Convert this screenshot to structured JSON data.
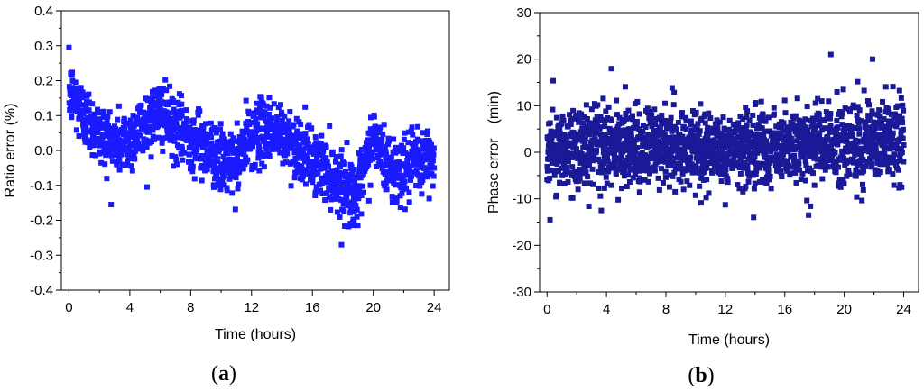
{
  "chart_data": [
    {
      "type": "scatter",
      "panel_label": {
        "open": "(",
        "letter": "a",
        "close": ")"
      },
      "xlabel": "Time (hours)",
      "ylabel": "Ratio error (%)",
      "xlim": [
        -0.5,
        25
      ],
      "ylim": [
        -0.4,
        0.4
      ],
      "xticks": [
        0,
        4,
        8,
        12,
        16,
        20,
        24
      ],
      "yticks": [
        -0.4,
        -0.3,
        -0.2,
        -0.1,
        0.0,
        0.1,
        0.2,
        0.3,
        0.4
      ],
      "ytick_labels": [
        "-0.4",
        "-0.3",
        "-0.2",
        "-0.1",
        "0.0",
        "0.1",
        "0.2",
        "0.3",
        "0.4"
      ],
      "marker": "square",
      "color": "#1a1aff",
      "grid": false,
      "points_per_hour": 70,
      "trend": [
        [
          0,
          0.17
        ],
        [
          1,
          0.1
        ],
        [
          2,
          0.05
        ],
        [
          3,
          0.02
        ],
        [
          4,
          0.03
        ],
        [
          5,
          0.08
        ],
        [
          6,
          0.11
        ],
        [
          7,
          0.06
        ],
        [
          8,
          0.04
        ],
        [
          9,
          0.01
        ],
        [
          10,
          -0.03
        ],
        [
          11,
          -0.04
        ],
        [
          12,
          0.05
        ],
        [
          13,
          0.06
        ],
        [
          14,
          0.04
        ],
        [
          15,
          0.01
        ],
        [
          16,
          -0.03
        ],
        [
          17,
          -0.06
        ],
        [
          18,
          -0.1
        ],
        [
          19,
          -0.13
        ],
        [
          20,
          0.04
        ],
        [
          21,
          -0.05
        ],
        [
          22,
          -0.06
        ],
        [
          23,
          -0.03
        ],
        [
          24,
          -0.02
        ]
      ],
      "noise": 0.045
    },
    {
      "type": "scatter",
      "panel_label": {
        "open": "(",
        "letter": "b",
        "close": ")"
      },
      "xlabel": "Time (hours)",
      "ylabel": "Phase error　(min)",
      "xlim": [
        -0.5,
        25
      ],
      "ylim": [
        -30,
        30
      ],
      "xticks": [
        0,
        4,
        8,
        12,
        16,
        20,
        24
      ],
      "yticks": [
        -30,
        -20,
        -10,
        0,
        10,
        20,
        30
      ],
      "ytick_labels": [
        "-30",
        "-20",
        "-10",
        "0",
        "10",
        "20",
        "30"
      ],
      "marker": "square",
      "color": "#1a1a99",
      "grid": false,
      "points_per_hour": 80,
      "trend": [
        [
          0,
          0.5
        ],
        [
          4,
          1.0
        ],
        [
          8,
          0.8
        ],
        [
          12,
          0.5
        ],
        [
          16,
          0.8
        ],
        [
          20,
          2.0
        ],
        [
          24,
          2.5
        ]
      ],
      "noise": 4.2,
      "outliers": [
        [
          19.1,
          21
        ],
        [
          21.9,
          20
        ],
        [
          0.2,
          -14.5
        ],
        [
          17.6,
          -13.5
        ],
        [
          13.9,
          -14
        ]
      ]
    }
  ]
}
